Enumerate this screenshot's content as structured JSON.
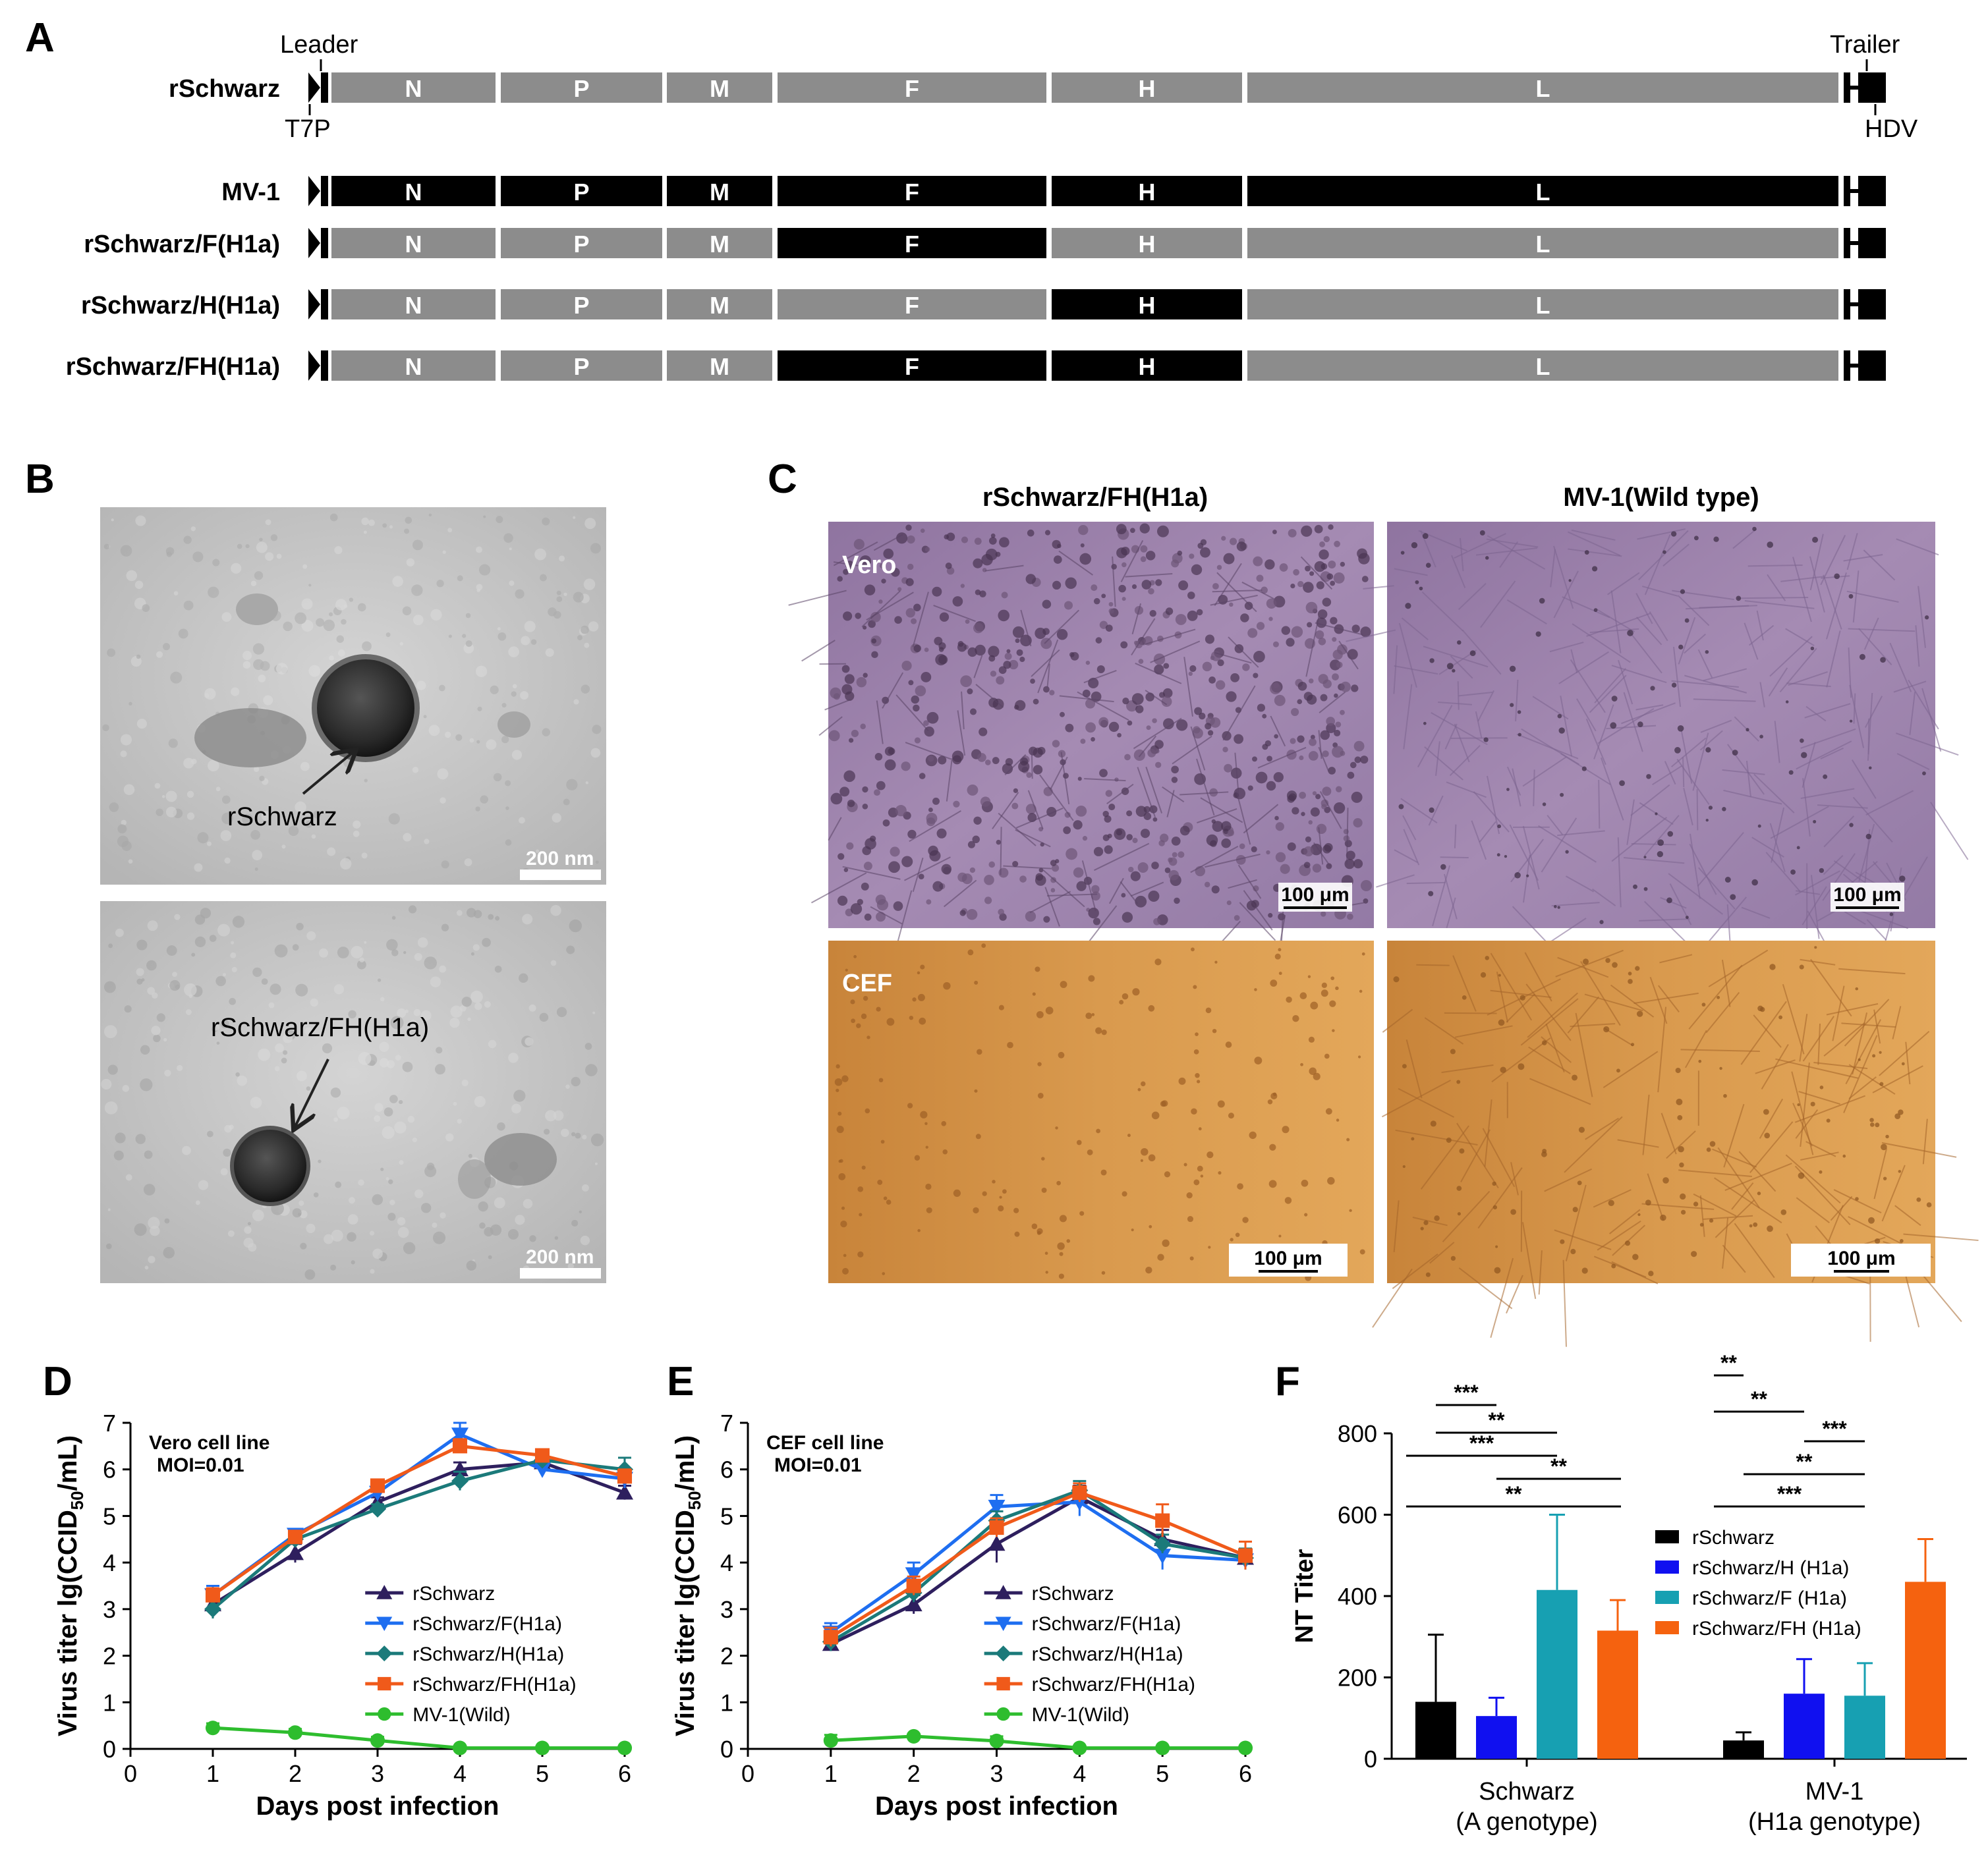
{
  "panel_labels": {
    "A": "A",
    "B": "B",
    "C": "C",
    "D": "D",
    "E": "E",
    "F": "F"
  },
  "genome": {
    "rows": [
      {
        "name": "rSchwarz",
        "black": []
      },
      {
        "name": "MV-1",
        "black": [
          "N",
          "P",
          "M",
          "F",
          "H",
          "L"
        ]
      },
      {
        "name": "rSchwarz/F(H1a)",
        "black": [
          "F"
        ]
      },
      {
        "name": "rSchwarz/H(H1a)",
        "black": [
          "H"
        ]
      },
      {
        "name": "rSchwarz/FH(H1a)",
        "black": [
          "F",
          "H"
        ]
      }
    ],
    "genes": [
      "N",
      "P",
      "M",
      "F",
      "H",
      "L"
    ],
    "annotations": {
      "leader": "Leader",
      "t7p": "T7P",
      "trailer": "Trailer",
      "hdv": "HDV"
    },
    "colors": {
      "gray": "#8c8c8c",
      "black": "#000000"
    }
  },
  "panel_b": {
    "top": {
      "arrow_label": "rSchwarz",
      "scale": "200 nm"
    },
    "bottom": {
      "arrow_label": "rSchwarz/FH(H1a)",
      "scale": "200 nm"
    }
  },
  "panel_c": {
    "col_headers": [
      "rSchwarz/FH(H1a)",
      "MV-1(Wild type)"
    ],
    "row_labels": [
      "Vero",
      "CEF"
    ],
    "scale": "100 μm",
    "colors": {
      "vero": "#9a7fa8",
      "cef": "#cf9142"
    }
  },
  "panel_d": {
    "chart_data": {
      "type": "line",
      "annotation": [
        "Vero cell line",
        "MOI=0.01"
      ],
      "xlabel": "Days post infection",
      "ylabel": "Virus titer lg(CCID50/mL)",
      "ylabel_parts": [
        "Virus titer lg(CCID",
        "50",
        "/mL)"
      ],
      "xlim": [
        0,
        6
      ],
      "ylim": [
        0,
        7
      ],
      "x_ticks": [
        "0",
        "1",
        "2",
        "3",
        "4",
        "5",
        "6"
      ],
      "y_ticks": [
        "0",
        "1",
        "2",
        "3",
        "4",
        "5",
        "6",
        "7"
      ],
      "legend_position": "center-right",
      "series": [
        {
          "name": "rSchwarz",
          "color": "#2e1f5e",
          "marker": "triangle",
          "x": [
            1,
            2,
            3,
            4,
            5,
            6
          ],
          "y": [
            3.1,
            4.2,
            5.3,
            6.0,
            6.15,
            5.5
          ],
          "err": [
            0.15,
            0.2,
            0.1,
            0.15,
            0.15,
            0.15
          ]
        },
        {
          "name": "rSchwarz/F(H1a)",
          "color": "#1e6ef0",
          "marker": "triangle-down",
          "x": [
            1,
            2,
            3,
            4,
            5,
            6
          ],
          "y": [
            3.3,
            4.6,
            5.5,
            6.75,
            6.0,
            5.8
          ],
          "err": [
            0.2,
            0.1,
            0.1,
            0.25,
            0.15,
            0.2
          ]
        },
        {
          "name": "rSchwarz/H(H1a)",
          "color": "#1b7a7a",
          "marker": "diamond",
          "x": [
            1,
            2,
            3,
            4,
            5,
            6
          ],
          "y": [
            3.0,
            4.5,
            5.15,
            5.75,
            6.2,
            6.0
          ],
          "err": [
            0.2,
            0.1,
            0.1,
            0.2,
            0.1,
            0.25
          ]
        },
        {
          "name": "rSchwarz/FH(H1a)",
          "color": "#f05a1a",
          "marker": "square",
          "x": [
            1,
            2,
            3,
            4,
            5,
            6
          ],
          "y": [
            3.3,
            4.55,
            5.65,
            6.5,
            6.3,
            5.85
          ],
          "err": [
            0.15,
            0.1,
            0.1,
            0.15,
            0.1,
            0.15
          ]
        },
        {
          "name": "MV-1(Wild)",
          "color": "#2ebd2e",
          "marker": "circle",
          "x": [
            1,
            2,
            3,
            4,
            5,
            6
          ],
          "y": [
            0.45,
            0.35,
            0.18,
            0.02,
            0.02,
            0.02
          ],
          "err": [
            0.1,
            0.08,
            0.08,
            0.02,
            0.02,
            0.02
          ]
        }
      ]
    }
  },
  "panel_e": {
    "chart_data": {
      "type": "line",
      "annotation": [
        "CEF cell line",
        "MOI=0.01"
      ],
      "xlabel": "Days post infection",
      "ylabel": "Virus titer lg(CCID50/mL)",
      "ylabel_parts": [
        "Virus titer lg(CCID",
        "50",
        "/mL)"
      ],
      "xlim": [
        0,
        6
      ],
      "ylim": [
        0,
        7
      ],
      "x_ticks": [
        "0",
        "1",
        "2",
        "3",
        "4",
        "5",
        "6"
      ],
      "y_ticks": [
        "0",
        "1",
        "2",
        "3",
        "4",
        "5",
        "6",
        "7"
      ],
      "legend_position": "center-right",
      "series": [
        {
          "name": "rSchwarz",
          "color": "#2e1f5e",
          "marker": "triangle",
          "x": [
            1,
            2,
            3,
            4,
            5,
            6
          ],
          "y": [
            2.25,
            3.1,
            4.4,
            5.4,
            4.5,
            4.1
          ],
          "err": [
            0.15,
            0.2,
            0.4,
            0.25,
            0.2,
            0.15
          ]
        },
        {
          "name": "rSchwarz/F(H1a)",
          "color": "#1e6ef0",
          "marker": "triangle-down",
          "x": [
            1,
            2,
            3,
            4,
            5,
            6
          ],
          "y": [
            2.5,
            3.75,
            5.2,
            5.3,
            4.15,
            4.05
          ],
          "err": [
            0.2,
            0.25,
            0.25,
            0.3,
            0.3,
            0.2
          ]
        },
        {
          "name": "rSchwarz/H(H1a)",
          "color": "#1b7a7a",
          "marker": "diamond",
          "x": [
            1,
            2,
            3,
            4,
            5,
            6
          ],
          "y": [
            2.3,
            3.35,
            4.9,
            5.55,
            4.4,
            4.1
          ],
          "err": [
            0.2,
            0.2,
            0.2,
            0.2,
            0.2,
            0.2
          ]
        },
        {
          "name": "rSchwarz/FH(H1a)",
          "color": "#f05a1a",
          "marker": "square",
          "x": [
            1,
            2,
            3,
            4,
            5,
            6
          ],
          "y": [
            2.4,
            3.5,
            4.75,
            5.5,
            4.9,
            4.15
          ],
          "err": [
            0.2,
            0.2,
            0.2,
            0.2,
            0.35,
            0.3
          ]
        },
        {
          "name": "MV-1(Wild)",
          "color": "#2ebd2e",
          "marker": "circle",
          "x": [
            1,
            2,
            3,
            4,
            5,
            6
          ],
          "y": [
            0.18,
            0.27,
            0.17,
            0.02,
            0.02,
            0.02
          ],
          "err": [
            0.12,
            0.05,
            0.1,
            0.02,
            0.02,
            0.02
          ]
        }
      ]
    }
  },
  "panel_f": {
    "chart_data": {
      "type": "bar",
      "ylabel": "NT Titer",
      "ylim": [
        0,
        800
      ],
      "y_ticks": [
        "0",
        "200",
        "400",
        "600",
        "800"
      ],
      "categories": [
        [
          "Schwarz",
          "(A genotype)"
        ],
        [
          "MV-1",
          "(H1a genotype)"
        ]
      ],
      "legend_position": "right",
      "series": [
        {
          "name": "rSchwarz",
          "color": "#000000",
          "values": [
            140,
            45
          ],
          "err": [
            165,
            20
          ]
        },
        {
          "name": "rSchwarz/H (H1a)",
          "color": "#1010f0",
          "values": [
            105,
            160
          ],
          "err": [
            45,
            85
          ]
        },
        {
          "name": "rSchwarz/F (H1a)",
          "color": "#17a0b2",
          "values": [
            415,
            155
          ],
          "err": [
            185,
            80
          ]
        },
        {
          "name": "rSchwarz/FH (H1a)",
          "color": "#f5620f",
          "values": [
            315,
            435
          ],
          "err": [
            75,
            105
          ]
        }
      ],
      "significance": [
        {
          "group": 0,
          "from": 1,
          "to": 2,
          "label": "***",
          "level": 0
        },
        {
          "group": 0,
          "from": 1,
          "to": 3,
          "label": "**",
          "level": 1
        },
        {
          "group": 0,
          "from": 0,
          "to": 3,
          "label": "***",
          "level": 2
        },
        {
          "group": 0,
          "from": 2,
          "to": 4,
          "label": "**",
          "level": 3
        },
        {
          "group": 0,
          "from": 0,
          "to": 4,
          "label": "**",
          "level": 4
        },
        {
          "group": 1,
          "from": 0,
          "to": 1,
          "label": "**",
          "level": 0
        },
        {
          "group": 1,
          "from": 0,
          "to": 2,
          "label": "**",
          "level": 1
        },
        {
          "group": 1,
          "from": 2,
          "to": 3,
          "label": "***",
          "level": 2
        },
        {
          "group": 1,
          "from": 1,
          "to": 3,
          "label": "**",
          "level": 3
        },
        {
          "group": 1,
          "from": 0,
          "to": 3,
          "label": "***",
          "level": 4
        }
      ]
    }
  }
}
